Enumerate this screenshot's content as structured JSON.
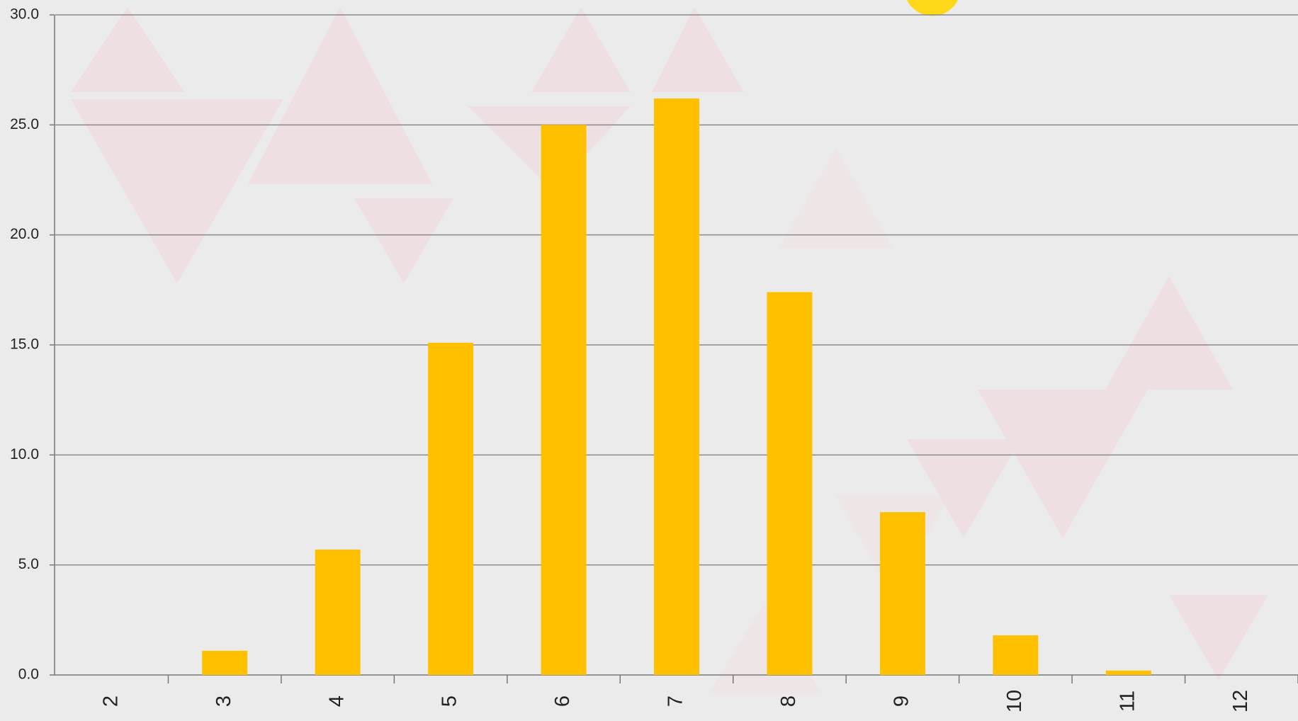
{
  "chart_data": {
    "type": "bar",
    "categories": [
      "2",
      "3",
      "4",
      "5",
      "6",
      "7",
      "8",
      "9",
      "10",
      "11",
      "12"
    ],
    "values": [
      0,
      1.1,
      5.7,
      15.1,
      25.0,
      26.2,
      17.4,
      7.4,
      1.8,
      0.2,
      0
    ],
    "color": "#ffc000",
    "ylim": [
      0,
      30
    ],
    "yticks": [
      {
        "value": 0,
        "label": "0.0"
      },
      {
        "value": 5,
        "label": "5.0"
      },
      {
        "value": 10,
        "label": "10.0"
      },
      {
        "value": 15,
        "label": "15.0"
      },
      {
        "value": 20,
        "label": "20.0"
      },
      {
        "value": 25,
        "label": "25.0"
      },
      {
        "value": 30,
        "label": "30.0"
      }
    ],
    "grid": true
  }
}
